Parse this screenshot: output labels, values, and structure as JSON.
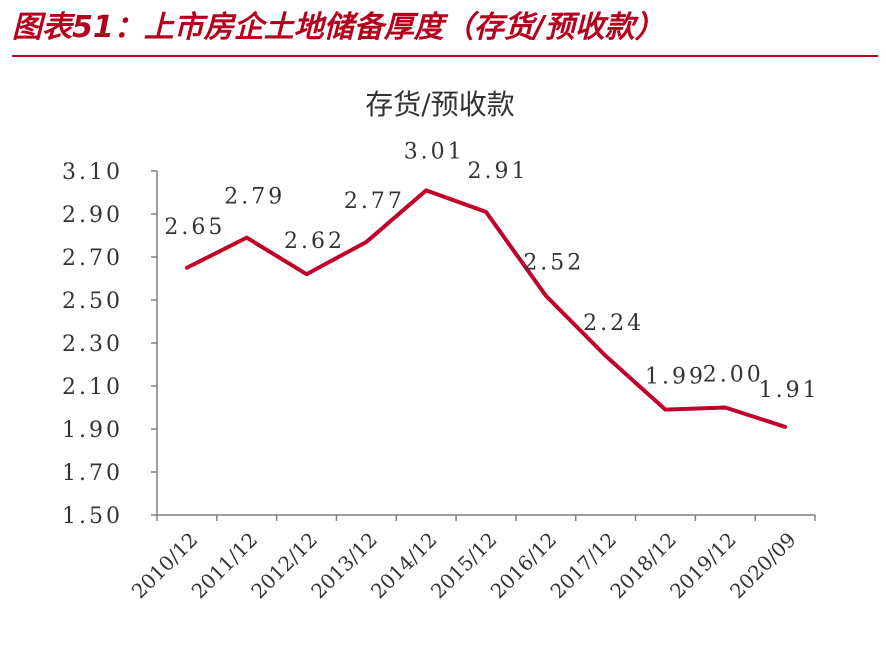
{
  "header": {
    "title": "图表51：上市房企土地储备厚度（存货/预收款）",
    "title_color": "#b4001e",
    "rule_color": "#b4001e"
  },
  "chart_data": {
    "type": "line",
    "title": "存货/预收款",
    "xlabel": "",
    "ylabel": "",
    "categories": [
      "2010/12",
      "2011/12",
      "2012/12",
      "2013/12",
      "2014/12",
      "2015/12",
      "2016/12",
      "2017/12",
      "2018/12",
      "2019/12",
      "2020/09"
    ],
    "series": [
      {
        "values": [
          2.65,
          2.79,
          2.62,
          2.77,
          3.01,
          2.91,
          2.52,
          2.24,
          1.99,
          2.0,
          1.91
        ],
        "color": "#c0002a"
      }
    ],
    "data_labels": [
      "2.65",
      "2.79",
      "2.62",
      "2.77",
      "3.01",
      "2.91",
      "2.52",
      "2.24",
      "1.99",
      "2.00",
      "1.91"
    ],
    "ylim": [
      1.5,
      3.1
    ],
    "yticks": [
      "1.50",
      "1.70",
      "1.90",
      "2.10",
      "2.30",
      "2.50",
      "2.70",
      "2.90",
      "3.10"
    ],
    "grid": false,
    "legend": "none",
    "axis_color": "#7f7f7f",
    "text_color": "#333333"
  }
}
